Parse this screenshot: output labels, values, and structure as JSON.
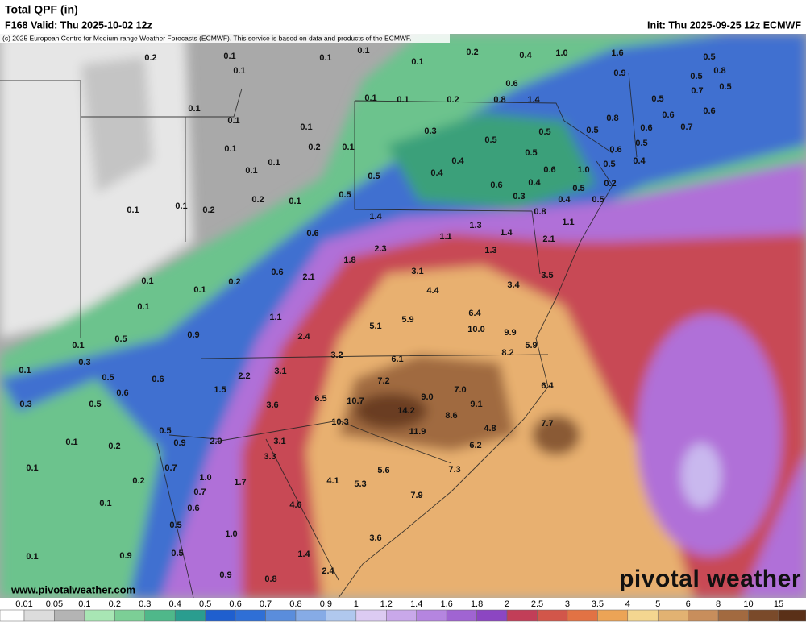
{
  "header": {
    "title": "Total QPF (in)",
    "valid": "F168 Valid: Thu 2025-10-02 12z",
    "init": "Init: Thu 2025-09-25 12z ECMWF",
    "copyright": "(c) 2025 European Centre for Medium-range Weather Forecasts (ECMWF). This service is based on data and products of the ECMWF."
  },
  "map": {
    "labels": [
      "0.2",
      "0.1",
      "0.1",
      "0.1",
      "0.1",
      "0.1",
      "0.2",
      "0.4",
      "1.0",
      "1.6",
      "0.5",
      "0.9",
      "0.5",
      "0.8",
      "0.6",
      "0.1",
      "0.1",
      "0.1",
      "0.1",
      "0.2",
      "0.8",
      "1.4",
      "0.5",
      "0.7",
      "0.5",
      "0.8",
      "0.6",
      "0.6",
      "0.1",
      "0.3",
      "0.5",
      "0.5",
      "0.6",
      "0.7",
      "0.1",
      "0.2",
      "0.1",
      "0.5",
      "0.6",
      "0.5",
      "0.1",
      "0.1",
      "0.4",
      "0.5",
      "0.5",
      "0.4",
      "0.5",
      "0.4",
      "0.6",
      "1.0",
      "0.6",
      "0.4",
      "0.2",
      "0.1",
      "0.5",
      "0.3",
      "0.4",
      "0.5",
      "0.2",
      "0.1",
      "0.1",
      "0.2",
      "0.5",
      "1.4",
      "0.8",
      "1.1",
      "0.6",
      "1.1",
      "1.3",
      "1.4",
      "2.1",
      "2.3",
      "1.3",
      "1.8",
      "0.6",
      "2.1",
      "3.1",
      "3.5",
      "0.1",
      "0.1",
      "0.2",
      "3.4",
      "4.4",
      "0.1",
      "1.1",
      "6.4",
      "5.1",
      "5.9",
      "10.0",
      "9.9",
      "0.9",
      "2.4",
      "0.5",
      "0.1",
      "5.9",
      "8.2",
      "3.2",
      "6.1",
      "0.1",
      "0.3",
      "0.5",
      "0.6",
      "2.2",
      "3.1",
      "7.2",
      "7.0",
      "6.4",
      "0.6",
      "1.5",
      "6.5",
      "10.7",
      "9.0",
      "9.1",
      "0.3",
      "0.5",
      "3.6",
      "14.2",
      "8.6",
      "10.3",
      "4.8",
      "7.7",
      "0.5",
      "11.9",
      "0.1",
      "0.2",
      "0.9",
      "2.0",
      "3.1",
      "6.2",
      "0.1",
      "0.7",
      "3.3",
      "5.6",
      "7.3",
      "0.2",
      "1.0",
      "1.7",
      "4.1",
      "5.3",
      "0.7",
      "7.9",
      "0.1",
      "0.6",
      "4.0",
      "0.5",
      "1.0",
      "3.6",
      "0.1",
      "0.9",
      "0.5",
      "1.4",
      "2.4",
      "0.9",
      "0.8"
    ]
  },
  "footer": {
    "site": "www.pivotalweather.com",
    "logo": "pivotal weather"
  },
  "colorbar": {
    "labels": [
      "0.01",
      "0.05",
      "0.1",
      "0.2",
      "0.3",
      "0.4",
      "0.5",
      "0.6",
      "0.7",
      "0.8",
      "0.9",
      "1",
      "1.2",
      "1.4",
      "1.6",
      "1.8",
      "2",
      "2.5",
      "3",
      "3.5",
      "4",
      "5",
      "6",
      "8",
      "10",
      "15"
    ],
    "colors": [
      "#ffffff",
      "#dcdcdc",
      "#b4b4b4",
      "#a8e6b4",
      "#7ccf96",
      "#4fb88a",
      "#2a9d8f",
      "#1f5fcf",
      "#2f6fd6",
      "#5a8ddc",
      "#86abe6",
      "#b0c8ee",
      "#dccbf2",
      "#c9a8ea",
      "#b585e0",
      "#a064d2",
      "#8c46c2",
      "#c23e58",
      "#d2564a",
      "#e27244",
      "#eca456",
      "#f4d690",
      "#e2b272",
      "#c88e5c",
      "#a26a40",
      "#7a4a2a",
      "#5a3018"
    ]
  }
}
